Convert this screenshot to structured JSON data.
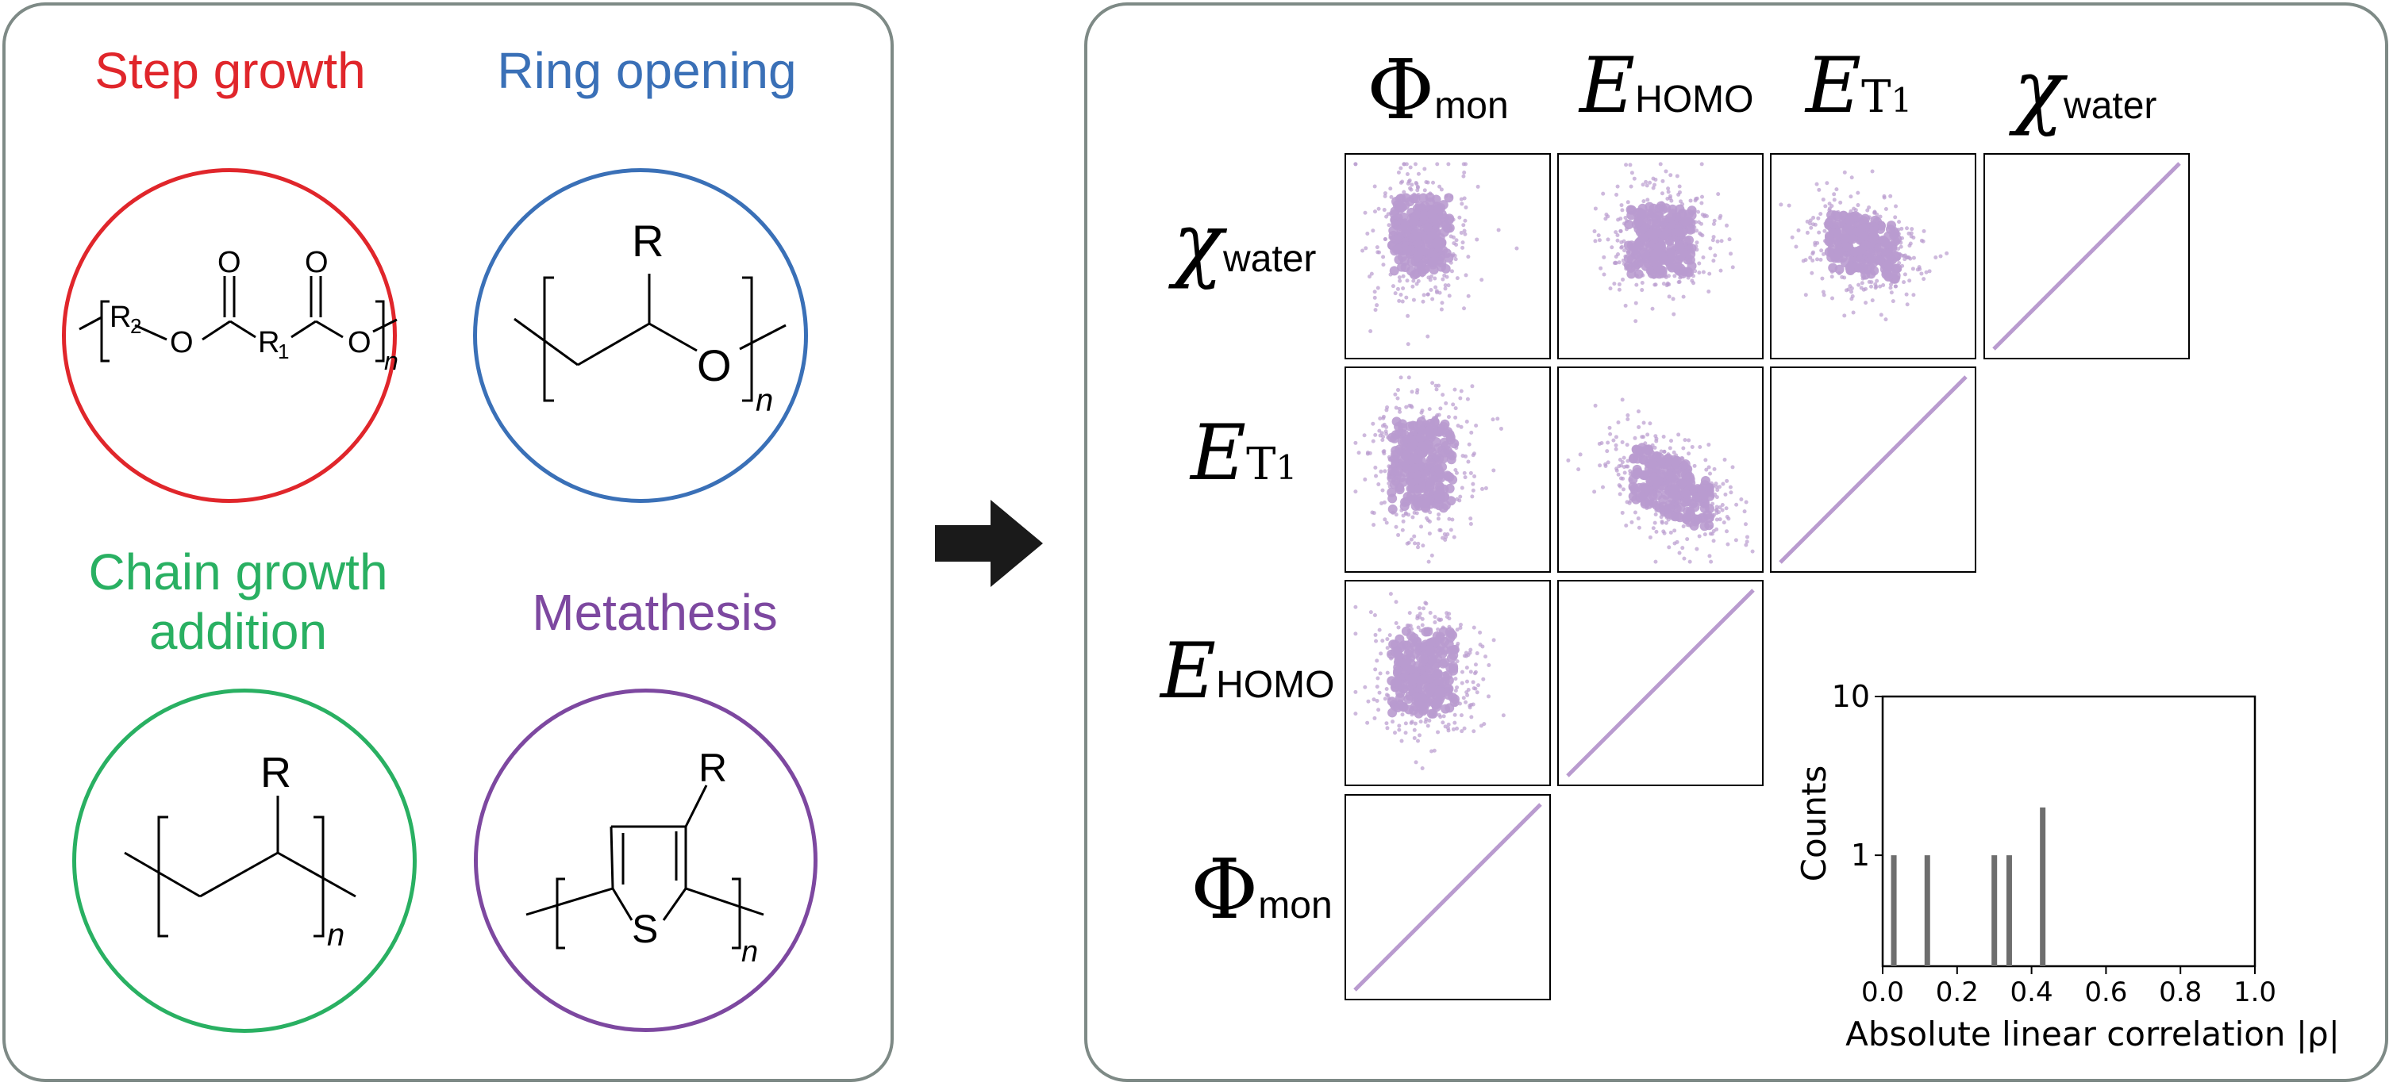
{
  "categories": [
    {
      "label": "Step growth",
      "color": "#e0262b"
    },
    {
      "label": "Ring opening",
      "color": "#3a70b7"
    },
    {
      "label": "Chain growth\naddition",
      "color": "#29b062"
    },
    {
      "label": "Metathesis",
      "color": "#7d48a0"
    }
  ],
  "molecules": {
    "step": {
      "r2": "R",
      "r2sub": "2",
      "o1": "O",
      "o2": "O",
      "r1": "R",
      "r1sub": "1",
      "o3": "O",
      "o4": "O",
      "n": "n"
    },
    "ring": {
      "r": "R",
      "o": "O",
      "n": "n"
    },
    "chain": {
      "r": "R",
      "n": "n"
    },
    "meta": {
      "r": "R",
      "s": "S",
      "n": "n"
    }
  },
  "variables": [
    {
      "symbol": "Φ",
      "sub": "mon"
    },
    {
      "symbol": "E",
      "sub": "HOMO"
    },
    {
      "symbol": "E",
      "sub": "T",
      "subsub": "1"
    },
    {
      "symbol": "χ",
      "sub": "water"
    }
  ],
  "rows": [
    {
      "symbol": "χ",
      "sub": "water"
    },
    {
      "symbol": "E",
      "sub": "T",
      "subsub": "1"
    },
    {
      "symbol": "E",
      "sub": "HOMO"
    },
    {
      "symbol": "Φ",
      "sub": "mon"
    }
  ],
  "scatter_color": "#b99bcf",
  "chart_data": {
    "type": "bar",
    "xlabel": "Absolute linear correlation |ρ|",
    "ylabel": "Counts",
    "xlim": [
      0.0,
      1.0
    ],
    "yscale": "log",
    "ylim": [
      0.2,
      10
    ],
    "xticks": [
      "0.0",
      "0.2",
      "0.4",
      "0.6",
      "0.8",
      "1.0"
    ],
    "yticks": [
      "1",
      "10"
    ],
    "x": [
      0.03,
      0.12,
      0.3,
      0.34,
      0.43
    ],
    "values": [
      1,
      1,
      1,
      1,
      2
    ],
    "bar_color": "#6e6e6e",
    "grid": false
  }
}
